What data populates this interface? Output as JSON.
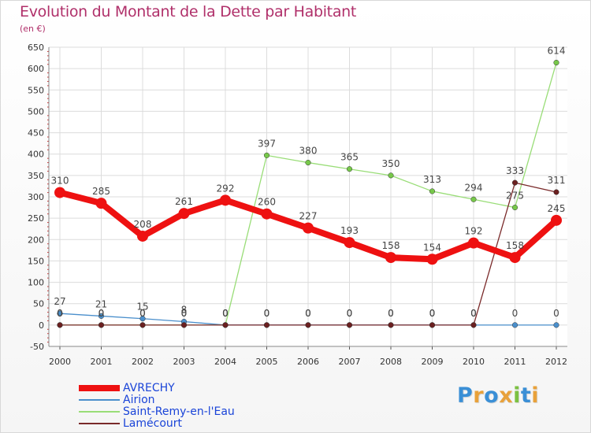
{
  "header": {
    "title": "Evolution du Montant de la Dette par Habitant",
    "subtitle": "(en €)"
  },
  "colors": {
    "title": "#b0306a",
    "legend_text": "#1a44d8",
    "grid": "#dcdcdc",
    "axis_text": "#333333"
  },
  "logo": {
    "text": "Proxiti",
    "letters": [
      {
        "char": "P",
        "color": "#3a8fd6"
      },
      {
        "char": "r",
        "color": "#e8a13a"
      },
      {
        "char": "o",
        "color": "#3a8fd6"
      },
      {
        "char": "x",
        "color": "#e8a13a"
      },
      {
        "char": "i",
        "color": "#7cc142"
      },
      {
        "char": "t",
        "color": "#3a8fd6"
      },
      {
        "char": "i",
        "color": "#e8a13a"
      }
    ]
  },
  "chart_data": {
    "type": "line",
    "title": "Evolution du Montant de la Dette par Habitant",
    "subtitle": "(en €)",
    "xlabel": "",
    "ylabel": "",
    "x": [
      "2000",
      "2001",
      "2002",
      "2003",
      "2004",
      "2005",
      "2006",
      "2007",
      "2008",
      "2009",
      "2010",
      "2011",
      "2012"
    ],
    "ylim": [
      -50,
      650
    ],
    "yticks": [
      -50,
      0,
      50,
      100,
      150,
      200,
      250,
      300,
      350,
      400,
      450,
      500,
      550,
      600,
      650
    ],
    "grid": true,
    "legend_position": "bottom-left",
    "series": [
      {
        "name": "AVRECHY",
        "color": "#ee1111",
        "emphasis": true,
        "values": [
          310,
          285,
          208,
          261,
          292,
          260,
          227,
          193,
          158,
          154,
          192,
          158,
          245
        ],
        "labels": [
          "310",
          "285",
          "208",
          "261",
          "292",
          "260",
          "227",
          "193",
          "158",
          "154",
          "192",
          "158",
          "245"
        ]
      },
      {
        "name": "Airion",
        "color": "#4a8fcc",
        "marker_color": "#4a8fcc",
        "values": [
          27,
          21,
          15,
          8,
          0,
          0,
          0,
          0,
          0,
          0,
          0,
          0,
          0
        ],
        "labels": [
          "27",
          "21",
          "15",
          "8",
          "0",
          "0",
          "0",
          "0",
          "0",
          "0",
          "0",
          "0",
          "0"
        ]
      },
      {
        "name": "Saint-Remy-en-l'Eau",
        "color": "#99dd77",
        "marker_color": "#77c84a",
        "values": [
          0,
          0,
          0,
          0,
          0,
          397,
          380,
          365,
          350,
          313,
          294,
          275,
          614
        ],
        "labels": [
          "0",
          "0",
          "0",
          "0",
          "0",
          "397",
          "380",
          "365",
          "350",
          "313",
          "294",
          "275",
          "614"
        ]
      },
      {
        "name": "Lamécourt",
        "color": "#7a2a2a",
        "marker_color": "#6b2020",
        "values": [
          0,
          0,
          0,
          0,
          0,
          0,
          0,
          0,
          0,
          0,
          0,
          333,
          311
        ],
        "labels": [
          "0",
          "0",
          "0",
          "0",
          "0",
          "0",
          "0",
          "0",
          "0",
          "0",
          "0",
          "333",
          "311"
        ]
      }
    ]
  }
}
